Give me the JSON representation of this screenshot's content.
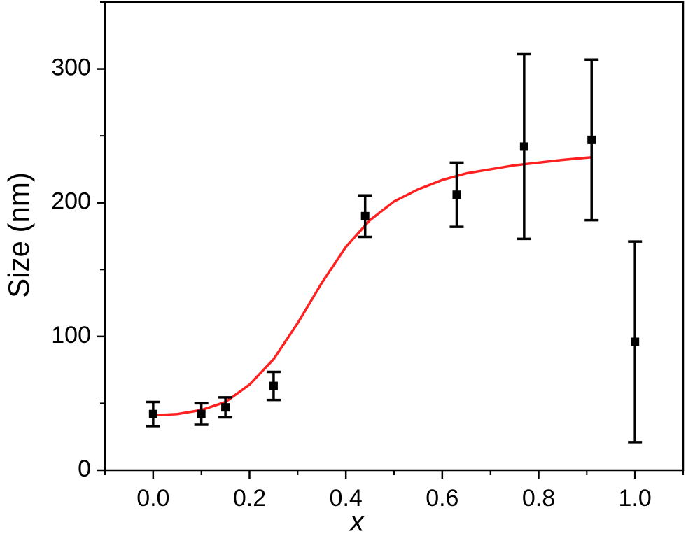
{
  "chart_data": {
    "type": "scatter",
    "xlabel": "x",
    "ylabel": "Size (nm)",
    "x": [
      0,
      0.1,
      0.15,
      0.25,
      0.44,
      0.63,
      0.77,
      0.91,
      1.0
    ],
    "series": [
      {
        "type": "scatter",
        "color": "#000000",
        "x": [
          0,
          0.1,
          0.15,
          0.25,
          0.44,
          0.63,
          0.77,
          0.91,
          1.0
        ],
        "values": [
          42,
          42,
          47,
          63,
          190,
          206,
          242,
          247,
          96
        ],
        "errors": [
          9,
          8,
          7.5,
          10.5,
          15.5,
          24,
          69,
          60,
          75
        ]
      },
      {
        "type": "line",
        "color": "#ff2020",
        "x": [
          0,
          0.05,
          0.1,
          0.15,
          0.2,
          0.25,
          0.3,
          0.35,
          0.4,
          0.45,
          0.5,
          0.55,
          0.6,
          0.65,
          0.7,
          0.75,
          0.8,
          0.85,
          0.91
        ],
        "values": [
          41,
          42,
          45,
          51,
          64,
          83,
          110,
          140,
          167,
          187,
          201,
          210,
          217,
          222,
          225,
          228,
          230,
          232,
          234
        ]
      }
    ],
    "xlim": [
      -0.1,
      1.1
    ],
    "ylim": [
      0,
      350
    ],
    "xticks": [
      {
        "value": 0,
        "label": "0.0"
      },
      0.2,
      0.4,
      0.6,
      0.8,
      {
        "value": 1,
        "label": "1.0"
      }
    ],
    "xminorticks": [
      -0.1,
      0.1,
      0.3,
      0.5,
      0.7,
      0.9,
      1.1
    ],
    "yticks": [
      0,
      100,
      200,
      300
    ],
    "yminorticks": [
      50,
      150,
      250,
      350
    ],
    "grid": false
  }
}
